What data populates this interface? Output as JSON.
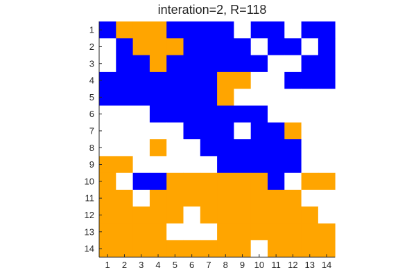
{
  "chart_data": {
    "type": "heatmap",
    "title": "interation=2, R=118",
    "xlabel": "",
    "ylabel": "",
    "x_ticks": [
      "1",
      "2",
      "3",
      "4",
      "5",
      "6",
      "7",
      "8",
      "9",
      "10",
      "11",
      "12",
      "13",
      "14"
    ],
    "y_ticks": [
      "1",
      "2",
      "3",
      "4",
      "5",
      "6",
      "7",
      "8",
      "9",
      "10",
      "11",
      "12",
      "13",
      "14"
    ],
    "xlim": [
      1,
      14
    ],
    "ylim": [
      1,
      14
    ],
    "grid": false,
    "colors": {
      "B": "#0000FF",
      "O": "#FFA500",
      "W": "#FFFFFF"
    },
    "grid_values": [
      "BOOOBBBBWBBWBB",
      "WBOOOBBBBWBBWB",
      "WBBOBBBBBBWWBB",
      "BBBBBBBOOWWBBB",
      "BBBBBBBOWWWWWW",
      "WWWBBBBBBBWWWW",
      "WWWWWBBBWBBOWW",
      "WWWOWWBBBBBBWW",
      "OOWWWWWBBBBBWW",
      "OWBBOOOOOOBWOO",
      "OOWOOOOOOOOOWW",
      "OOOOOWOOOOOOOW",
      "OOOOWWWOOOOOOO",
      "OOOOOOOOOWOOOO"
    ]
  }
}
